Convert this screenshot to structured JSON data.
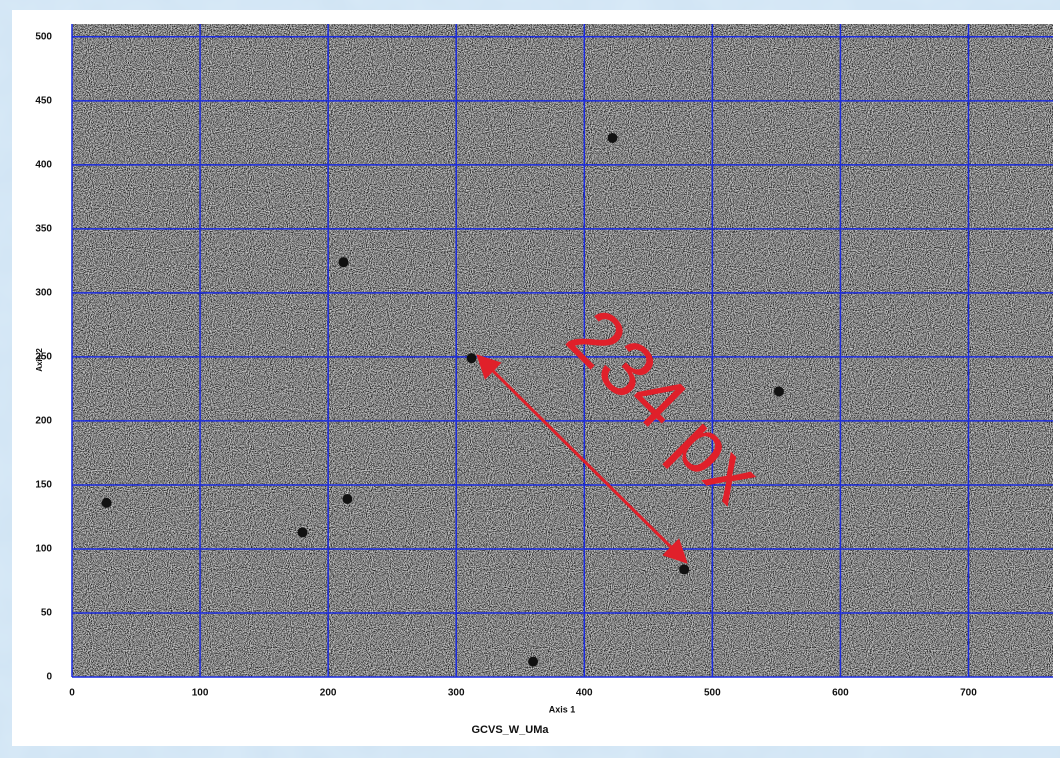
{
  "chart_data": {
    "type": "scatter",
    "title": "GCVS_W_UMa",
    "xlabel": "Axis 1",
    "ylabel": "Axis 2",
    "annotation": "234 px",
    "x": [
      312,
      212,
      422,
      552,
      27,
      180,
      215,
      478,
      360
    ],
    "values": [
      249,
      324,
      421,
      223,
      136,
      113,
      139,
      84,
      12
    ],
    "color": "#111111",
    "grid_color": "#1a2adf",
    "annotation_color": "#e0202a",
    "xlim": [
      0,
      766
    ],
    "ylim": [
      0,
      510
    ],
    "xticks": [
      0,
      100,
      200,
      300,
      400,
      500,
      600,
      700
    ],
    "yticks": [
      0,
      50,
      100,
      150,
      200,
      250,
      300,
      350,
      400,
      450,
      500
    ],
    "grid": true
  }
}
